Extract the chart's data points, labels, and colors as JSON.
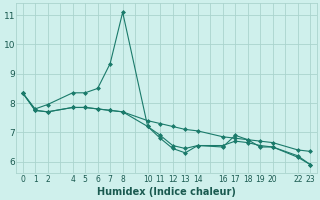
{
  "xlabel": "Humidex (Indice chaleur)",
  "background_color": "#cff0ec",
  "grid_color": "#aad4ce",
  "line_color": "#1a7a6a",
  "xlim": [
    -0.5,
    23.5
  ],
  "ylim": [
    5.6,
    11.4
  ],
  "yticks": [
    6,
    7,
    8,
    9,
    10,
    11
  ],
  "xtick_positions": [
    0,
    1,
    2,
    4,
    5,
    6,
    7,
    8,
    10,
    11,
    12,
    13,
    14,
    16,
    17,
    18,
    19,
    20,
    22,
    23
  ],
  "xtick_labels": [
    "0",
    "1",
    "2",
    "4",
    "5",
    "6",
    "7",
    "8",
    "10",
    "11",
    "12",
    "13",
    "14",
    "16",
    "17",
    "18",
    "19",
    "20",
    "22",
    "23"
  ],
  "series1_x": [
    0,
    1,
    2,
    4,
    5,
    6,
    7,
    8,
    10,
    11,
    12,
    13,
    14,
    16,
    17,
    18,
    19,
    20,
    22,
    23
  ],
  "series1_y": [
    8.35,
    7.8,
    7.95,
    8.35,
    8.35,
    8.5,
    9.35,
    11.1,
    7.2,
    6.8,
    6.45,
    6.3,
    6.55,
    6.5,
    6.9,
    6.75,
    6.5,
    6.5,
    6.15,
    5.9
  ],
  "series2_x": [
    0,
    1,
    2,
    4,
    5,
    6,
    7,
    8,
    10,
    11,
    12,
    13,
    14,
    16,
    17,
    18,
    19,
    20,
    22,
    23
  ],
  "series2_y": [
    8.35,
    7.75,
    7.7,
    7.85,
    7.85,
    7.8,
    7.75,
    7.7,
    7.4,
    7.3,
    7.2,
    7.1,
    7.05,
    6.85,
    6.8,
    6.75,
    6.7,
    6.65,
    6.4,
    6.35
  ],
  "series3_x": [
    0,
    1,
    2,
    4,
    5,
    6,
    7,
    8,
    10,
    11,
    12,
    13,
    14,
    16,
    17,
    18,
    19,
    20,
    22,
    23
  ],
  "series3_y": [
    8.35,
    7.75,
    7.7,
    7.85,
    7.85,
    7.8,
    7.75,
    7.7,
    7.2,
    6.9,
    6.55,
    6.45,
    6.55,
    6.55,
    6.7,
    6.65,
    6.55,
    6.5,
    6.2,
    5.9
  ]
}
